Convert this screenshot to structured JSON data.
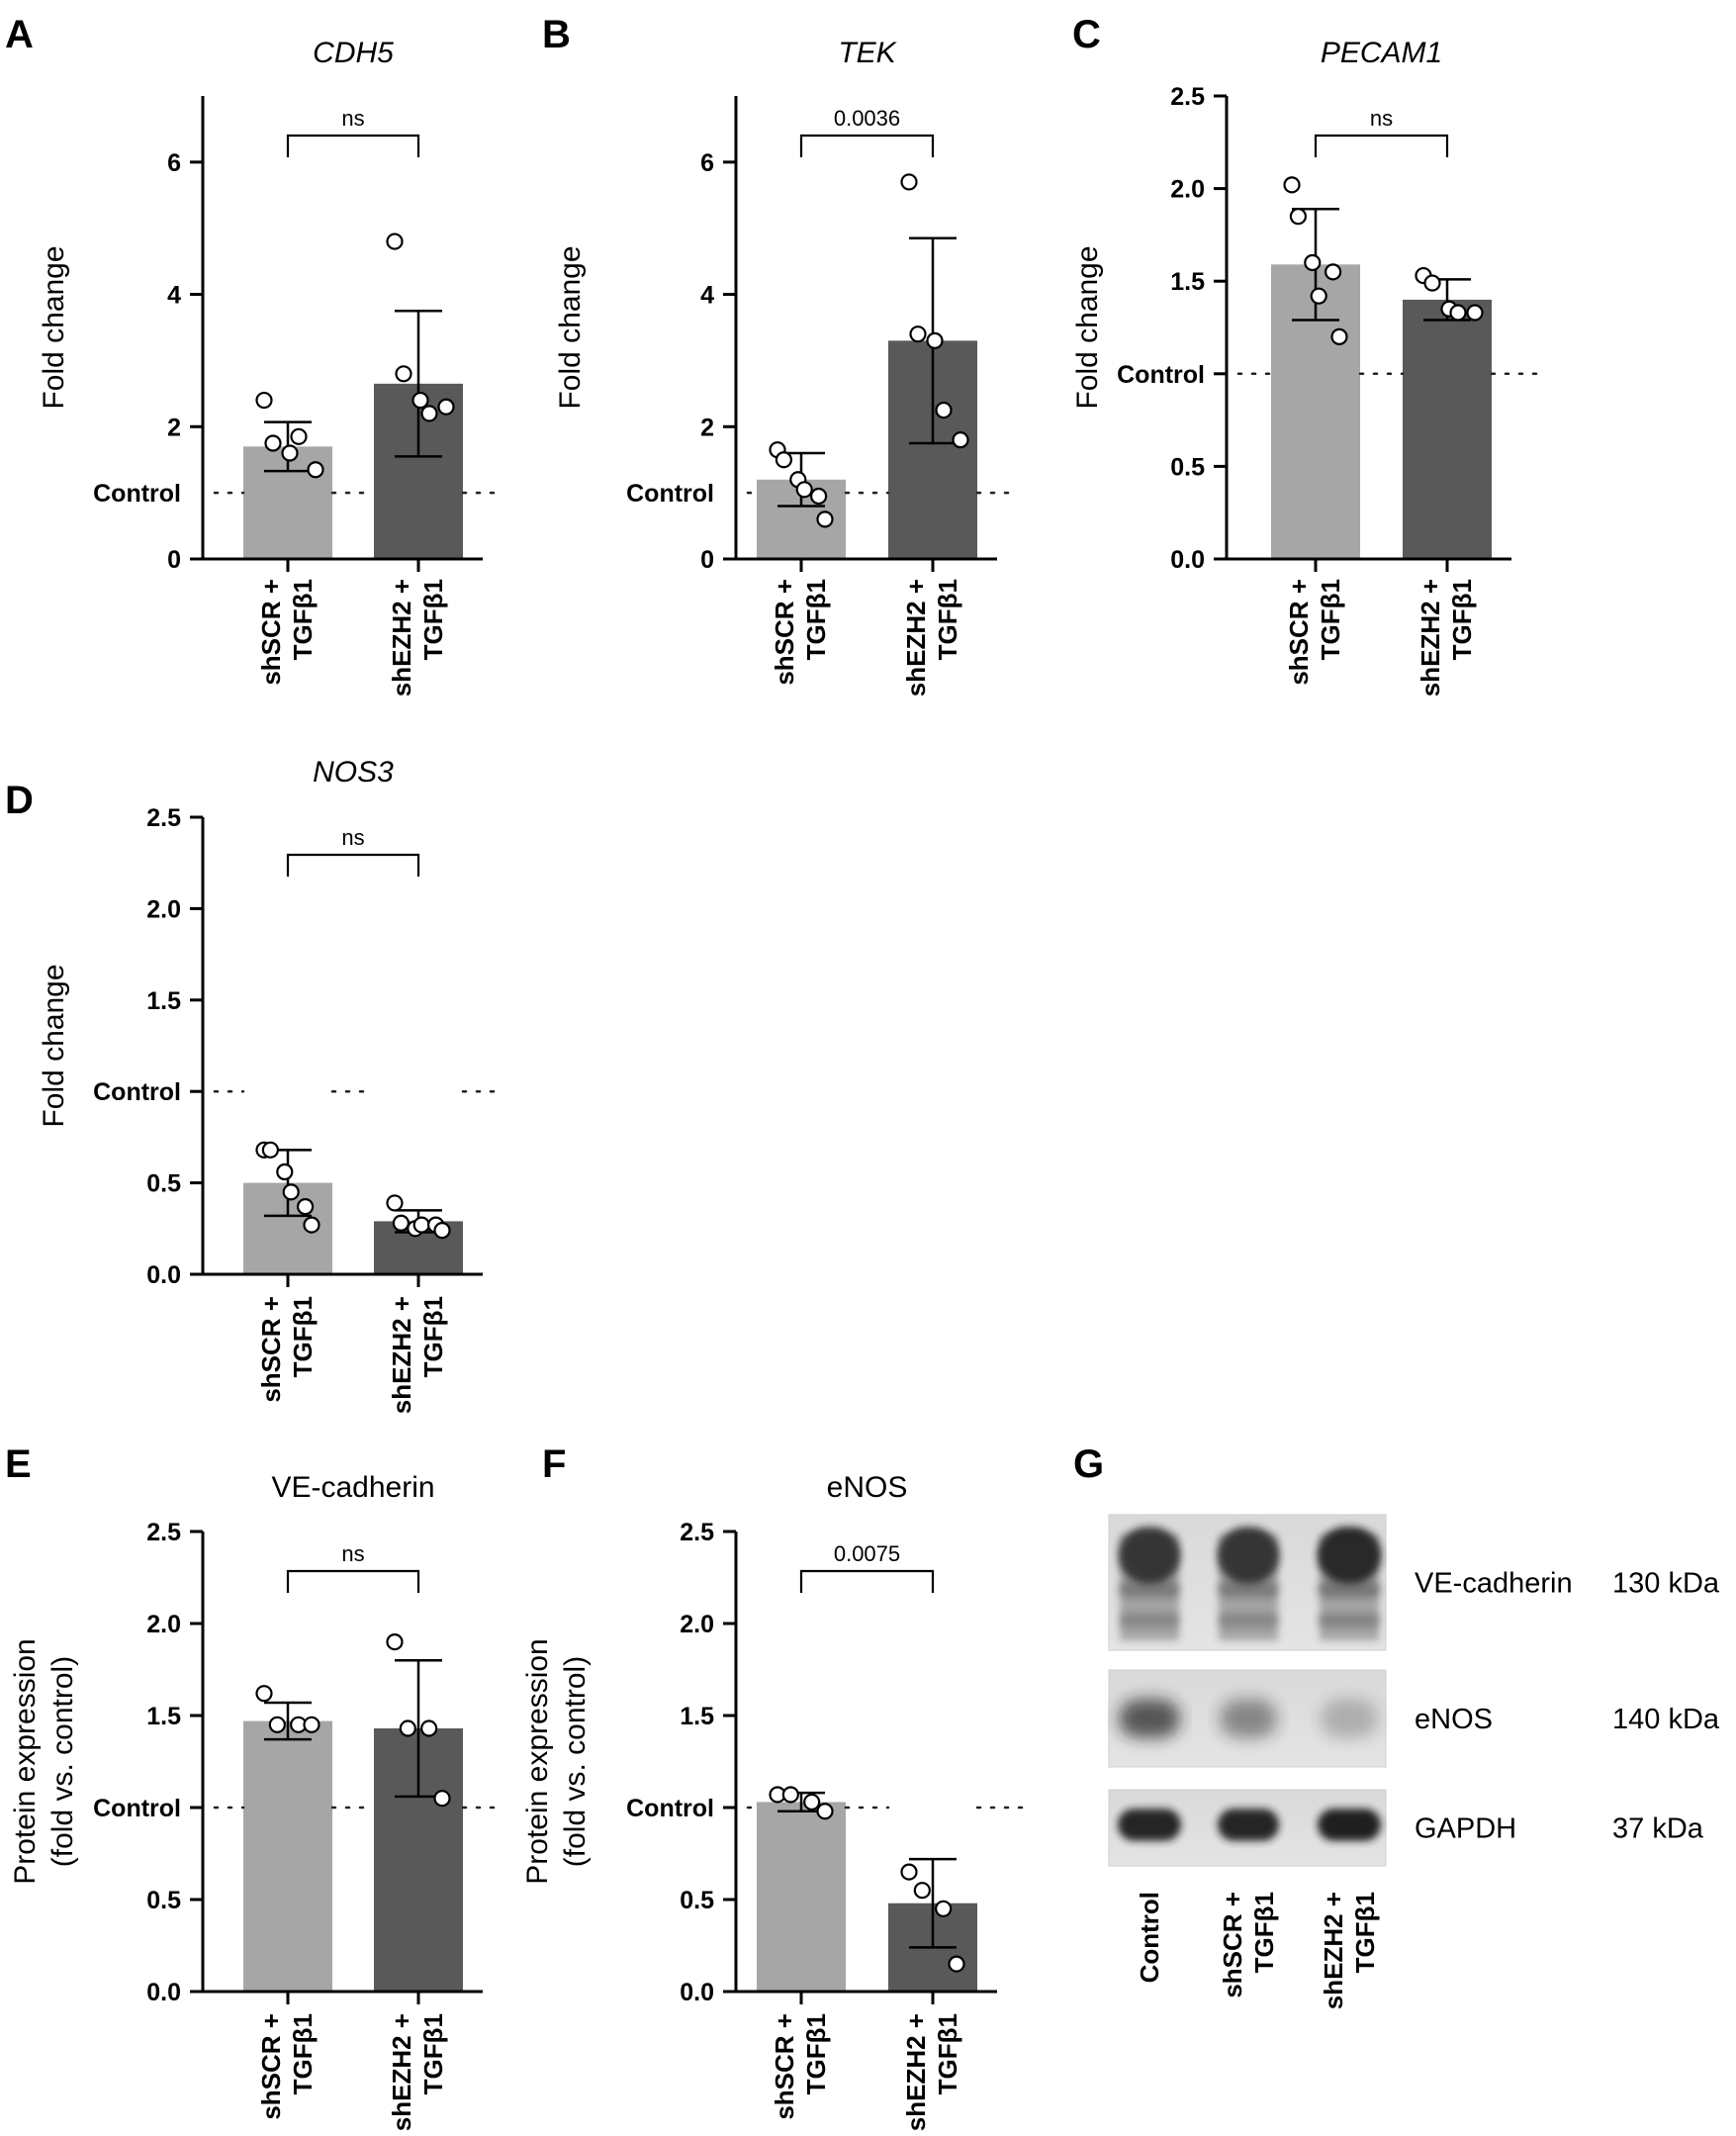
{
  "chart_data": [
    {
      "panel": "A",
      "type": "bar",
      "title": "CDH5",
      "title_italic": true,
      "ylabel": "Fold change",
      "ylim": [
        0,
        7
      ],
      "yticks": [
        0,
        2,
        4,
        6
      ],
      "tick_labels": [
        "0",
        "2",
        "4",
        "6"
      ],
      "reference_line": {
        "value": 1,
        "label": "Control"
      },
      "categories": [
        "shSCR + TGFβ1",
        "shEZH2 + TGFβ1"
      ],
      "category_lines": [
        [
          "shSCR +",
          "TGFβ1"
        ],
        [
          "shEZH2 +",
          "TGFβ1"
        ]
      ],
      "values": [
        1.7,
        2.65
      ],
      "errors": [
        0.37,
        1.1
      ],
      "points": [
        [
          2.4,
          1.75,
          1.6,
          1.85,
          1.35
        ],
        [
          4.8,
          2.8,
          2.4,
          2.2,
          2.3
        ]
      ],
      "bar_colors": [
        "#a6a6a6",
        "#595959"
      ],
      "significance": "ns"
    },
    {
      "panel": "B",
      "type": "bar",
      "title": "TEK",
      "title_italic": true,
      "ylabel": "Fold change",
      "ylim": [
        0,
        7
      ],
      "yticks": [
        0,
        2,
        4,
        6
      ],
      "tick_labels": [
        "0",
        "2",
        "4",
        "6"
      ],
      "reference_line": {
        "value": 1,
        "label": "Control"
      },
      "categories": [
        "shSCR + TGFβ1",
        "shEZH2 + TGFβ1"
      ],
      "category_lines": [
        [
          "shSCR +",
          "TGFβ1"
        ],
        [
          "shEZH2 +",
          "TGFβ1"
        ]
      ],
      "values": [
        1.2,
        3.3
      ],
      "errors": [
        0.4,
        1.55
      ],
      "points": [
        [
          1.65,
          1.5,
          1.2,
          1.05,
          0.95,
          0.6
        ],
        [
          5.7,
          3.4,
          3.3,
          2.25,
          1.8
        ]
      ],
      "bar_colors": [
        "#a6a6a6",
        "#595959"
      ],
      "significance": "0.0036"
    },
    {
      "panel": "C",
      "type": "bar",
      "title": "PECAM1",
      "title_italic": true,
      "ylabel": "Fold change",
      "ylim": [
        0,
        2.5
      ],
      "yticks": [
        0,
        0.5,
        1,
        1.5,
        2,
        2.5
      ],
      "tick_labels": [
        "0.0",
        "0.5",
        "Control",
        "1.5",
        "2.0",
        "2.5"
      ],
      "reference_line": {
        "value": 1,
        "label": "Control"
      },
      "categories": [
        "shSCR + TGFβ1",
        "shEZH2 + TGFβ1"
      ],
      "category_lines": [
        [
          "shSCR +",
          "TGFβ1"
        ],
        [
          "shEZH2 +",
          "TGFβ1"
        ]
      ],
      "values": [
        1.59,
        1.4
      ],
      "errors": [
        0.3,
        0.11
      ],
      "points": [
        [
          2.02,
          1.85,
          1.6,
          1.42,
          1.55,
          1.2
        ],
        [
          1.53,
          1.49,
          1.35,
          1.33,
          1.33
        ]
      ],
      "bar_colors": [
        "#a6a6a6",
        "#595959"
      ],
      "significance": "ns"
    },
    {
      "panel": "D",
      "type": "bar",
      "title": "NOS3",
      "title_italic": true,
      "ylabel": "Fold change",
      "ylim": [
        0,
        2.5
      ],
      "yticks": [
        0,
        0.5,
        1,
        1.5,
        2,
        2.5
      ],
      "tick_labels": [
        "0.0",
        "0.5",
        "Control",
        "1.5",
        "2.0",
        "2.5"
      ],
      "reference_line": {
        "value": 1,
        "label": "Control"
      },
      "categories": [
        "shSCR + TGFβ1",
        "shEZH2 + TGFβ1"
      ],
      "category_lines": [
        [
          "shSCR +",
          "TGFβ1"
        ],
        [
          "shEZH2 +",
          "TGFβ1"
        ]
      ],
      "values": [
        0.5,
        0.29
      ],
      "errors": [
        0.18,
        0.06
      ],
      "points": [
        [
          0.68,
          0.68,
          0.56,
          0.45,
          0.37,
          0.27
        ],
        [
          0.39,
          0.28,
          0.25,
          0.27,
          0.27,
          0.24
        ]
      ],
      "bar_colors": [
        "#a6a6a6",
        "#595959"
      ],
      "significance": "ns"
    },
    {
      "panel": "E",
      "type": "bar",
      "title": "VE-cadherin",
      "title_italic": false,
      "ylabel_lines": [
        "Protein expression",
        "(fold vs. control)"
      ],
      "ylim": [
        0,
        2.5
      ],
      "yticks": [
        0,
        0.5,
        1,
        1.5,
        2,
        2.5
      ],
      "tick_labels": [
        "0.0",
        "0.5",
        "Control",
        "1.5",
        "2.0",
        "2.5"
      ],
      "reference_line": {
        "value": 1,
        "label": "Control"
      },
      "categories": [
        "shSCR + TGFβ1",
        "shEZH2 + TGFβ1"
      ],
      "category_lines": [
        [
          "shSCR +",
          "TGFβ1"
        ],
        [
          "shEZH2 +",
          "TGFβ1"
        ]
      ],
      "values": [
        1.47,
        1.43
      ],
      "errors": [
        0.1,
        0.37
      ],
      "points": [
        [
          1.62,
          1.45,
          1.45,
          1.45
        ],
        [
          1.9,
          1.43,
          1.43,
          1.05
        ]
      ],
      "bar_colors": [
        "#a6a6a6",
        "#595959"
      ],
      "significance": "ns"
    },
    {
      "panel": "F",
      "type": "bar",
      "title": "eNOS",
      "title_italic": false,
      "ylabel_lines": [
        "Protein expression",
        "(fold vs. control)"
      ],
      "ylim": [
        0,
        2.5
      ],
      "yticks": [
        0,
        0.5,
        1,
        1.5,
        2,
        2.5
      ],
      "tick_labels": [
        "0.0",
        "0.5",
        "Control",
        "1.5",
        "2.0",
        "2.5"
      ],
      "reference_line": {
        "value": 1,
        "label": "Control"
      },
      "categories": [
        "shSCR + TGFβ1",
        "shEZH2 + TGFβ1"
      ],
      "category_lines": [
        [
          "shSCR +",
          "TGFβ1"
        ],
        [
          "shEZH2 +",
          "TGFβ1"
        ]
      ],
      "values": [
        1.03,
        0.48
      ],
      "errors": [
        0.05,
        0.24
      ],
      "points": [
        [
          1.07,
          1.07,
          1.03,
          0.98
        ],
        [
          0.65,
          0.55,
          0.45,
          0.15
        ]
      ],
      "bar_colors": [
        "#a6a6a6",
        "#595959"
      ],
      "significance": "0.0075"
    }
  ],
  "blot": {
    "panel": "G",
    "rows": [
      {
        "protein": "VE-cadherin",
        "size": "130 kDa"
      },
      {
        "protein": "eNOS",
        "size": "140 kDa"
      },
      {
        "protein": "GAPDH",
        "size": "37 kDa"
      }
    ],
    "lanes": [
      {
        "lines": [
          "Control"
        ]
      },
      {
        "lines": [
          "shSCR +",
          "TGFβ1"
        ]
      },
      {
        "lines": [
          "shEZH2 +",
          "TGFβ1"
        ]
      }
    ]
  }
}
